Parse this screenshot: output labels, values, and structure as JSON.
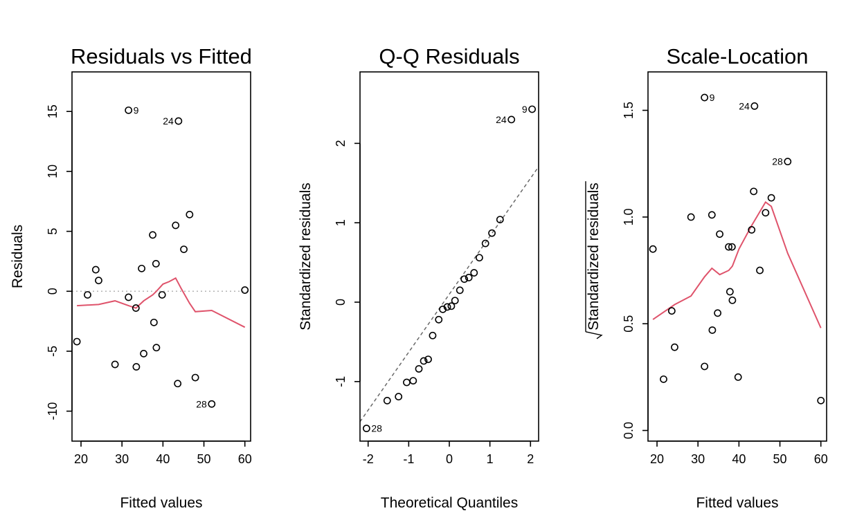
{
  "chart_data": [
    {
      "type": "scatter",
      "title": "Residuals vs Fitted",
      "xlabel": "Fitted values",
      "ylabel": "Residuals",
      "xlim": [
        17.8,
        61.4
      ],
      "ylim": [
        -12.5,
        18.3
      ],
      "xticks": [
        20,
        30,
        40,
        50,
        60
      ],
      "yticks": [
        -10,
        -5,
        0,
        5,
        10,
        15
      ],
      "ref_line": {
        "y": 0,
        "style": "dotted",
        "color": "#b3b3b3"
      },
      "points": [
        {
          "x": 19.0,
          "y": -4.2
        },
        {
          "x": 21.6,
          "y": -0.3
        },
        {
          "x": 23.6,
          "y": 1.8
        },
        {
          "x": 24.3,
          "y": 0.9
        },
        {
          "x": 28.3,
          "y": -6.1
        },
        {
          "x": 31.6,
          "y": 15.1,
          "label": "9"
        },
        {
          "x": 31.6,
          "y": -0.5
        },
        {
          "x": 33.4,
          "y": -1.4
        },
        {
          "x": 33.5,
          "y": -6.3
        },
        {
          "x": 34.8,
          "y": 1.9
        },
        {
          "x": 35.3,
          "y": -5.2
        },
        {
          "x": 37.5,
          "y": 4.7
        },
        {
          "x": 37.8,
          "y": -2.6
        },
        {
          "x": 38.3,
          "y": 2.3
        },
        {
          "x": 38.4,
          "y": -4.7
        },
        {
          "x": 39.8,
          "y": -0.3
        },
        {
          "x": 43.1,
          "y": 5.5
        },
        {
          "x": 43.6,
          "y": -7.7
        },
        {
          "x": 43.8,
          "y": 14.2,
          "label": "24"
        },
        {
          "x": 45.1,
          "y": 3.5
        },
        {
          "x": 46.5,
          "y": 6.4
        },
        {
          "x": 47.9,
          "y": -7.2
        },
        {
          "x": 51.9,
          "y": -9.4,
          "label": "28"
        },
        {
          "x": 60.0,
          "y": 0.1
        }
      ],
      "smooth": {
        "color": "#df536b",
        "x": [
          19.0,
          24.3,
          28.3,
          31.6,
          33.4,
          35.3,
          37.5,
          38.4,
          40.0,
          41.5,
          43.1,
          44.5,
          46.5,
          47.9,
          51.9,
          60.0
        ],
        "y": [
          -1.2,
          -1.1,
          -0.8,
          -1.2,
          -1.4,
          -0.8,
          -0.3,
          0.0,
          0.6,
          0.8,
          1.1,
          0.2,
          -1.0,
          -1.7,
          -1.6,
          -3.0
        ]
      }
    },
    {
      "type": "scatter",
      "title": "Q-Q Residuals",
      "xlabel": "Theoretical Quantiles",
      "ylabel": "Standardized residuals",
      "xlim": [
        -2.2,
        2.2
      ],
      "ylim": [
        -1.75,
        2.9
      ],
      "xticks": [
        -2,
        -1,
        0,
        1,
        2
      ],
      "yticks": [
        -1,
        0,
        1,
        2
      ],
      "ref_line": {
        "slope": 0.73,
        "intercept": 0.1,
        "style": "dashed",
        "color": "#666666"
      },
      "points": [
        {
          "x": -2.04,
          "y": -1.59,
          "label": "28"
        },
        {
          "x": -1.53,
          "y": -1.24
        },
        {
          "x": -1.25,
          "y": -1.19
        },
        {
          "x": -1.05,
          "y": -1.01
        },
        {
          "x": -0.89,
          "y": -0.99
        },
        {
          "x": -0.75,
          "y": -0.84
        },
        {
          "x": -0.63,
          "y": -0.74
        },
        {
          "x": -0.52,
          "y": -0.72
        },
        {
          "x": -0.41,
          "y": -0.42
        },
        {
          "x": -0.26,
          "y": -0.22
        },
        {
          "x": -0.16,
          "y": -0.09
        },
        {
          "x": -0.05,
          "y": -0.06
        },
        {
          "x": 0.05,
          "y": -0.05
        },
        {
          "x": 0.14,
          "y": 0.02
        },
        {
          "x": 0.26,
          "y": 0.15
        },
        {
          "x": 0.37,
          "y": 0.29
        },
        {
          "x": 0.48,
          "y": 0.31
        },
        {
          "x": 0.61,
          "y": 0.37
        },
        {
          "x": 0.74,
          "y": 0.56
        },
        {
          "x": 0.89,
          "y": 0.74
        },
        {
          "x": 1.05,
          "y": 0.87
        },
        {
          "x": 1.25,
          "y": 1.04
        },
        {
          "x": 1.53,
          "y": 2.3,
          "label": "24"
        },
        {
          "x": 2.04,
          "y": 2.43,
          "label": "9"
        }
      ]
    },
    {
      "type": "scatter",
      "title": "Scale-Location",
      "xlabel": "Fitted values",
      "ylabel": "Standardized residuals",
      "ylabel_sqrt": true,
      "xlim": [
        17.8,
        61.4
      ],
      "ylim": [
        -0.05,
        1.68
      ],
      "xticks": [
        20,
        30,
        40,
        50,
        60
      ],
      "yticks": [
        0.0,
        0.5,
        1.0,
        1.5
      ],
      "ytick_labels": [
        "0.0",
        "0.5",
        "1.0",
        "1.5"
      ],
      "points": [
        {
          "x": 19.0,
          "y": 0.85
        },
        {
          "x": 21.6,
          "y": 0.24
        },
        {
          "x": 23.6,
          "y": 0.56
        },
        {
          "x": 24.3,
          "y": 0.39
        },
        {
          "x": 28.3,
          "y": 1.0
        },
        {
          "x": 31.6,
          "y": 1.56,
          "label": "9"
        },
        {
          "x": 31.6,
          "y": 0.3
        },
        {
          "x": 33.4,
          "y": 1.01
        },
        {
          "x": 33.5,
          "y": 0.47
        },
        {
          "x": 34.8,
          "y": 0.55
        },
        {
          "x": 35.3,
          "y": 0.92
        },
        {
          "x": 37.5,
          "y": 0.86
        },
        {
          "x": 37.8,
          "y": 0.65
        },
        {
          "x": 38.3,
          "y": 0.86
        },
        {
          "x": 38.4,
          "y": 0.61
        },
        {
          "x": 39.8,
          "y": 0.25
        },
        {
          "x": 43.1,
          "y": 0.94
        },
        {
          "x": 43.6,
          "y": 1.12
        },
        {
          "x": 43.8,
          "y": 1.52,
          "label": "24"
        },
        {
          "x": 45.1,
          "y": 0.75
        },
        {
          "x": 46.5,
          "y": 1.02
        },
        {
          "x": 47.9,
          "y": 1.09
        },
        {
          "x": 51.9,
          "y": 1.26,
          "label": "28"
        },
        {
          "x": 60.0,
          "y": 0.14
        }
      ],
      "smooth": {
        "color": "#df536b",
        "x": [
          19.0,
          24.3,
          28.3,
          31.6,
          33.4,
          35.3,
          37.5,
          38.4,
          40.0,
          43.1,
          46.5,
          47.9,
          51.9,
          60.0
        ],
        "y": [
          0.52,
          0.59,
          0.63,
          0.72,
          0.76,
          0.73,
          0.75,
          0.77,
          0.85,
          0.96,
          1.07,
          1.05,
          0.83,
          0.48
        ]
      }
    }
  ]
}
